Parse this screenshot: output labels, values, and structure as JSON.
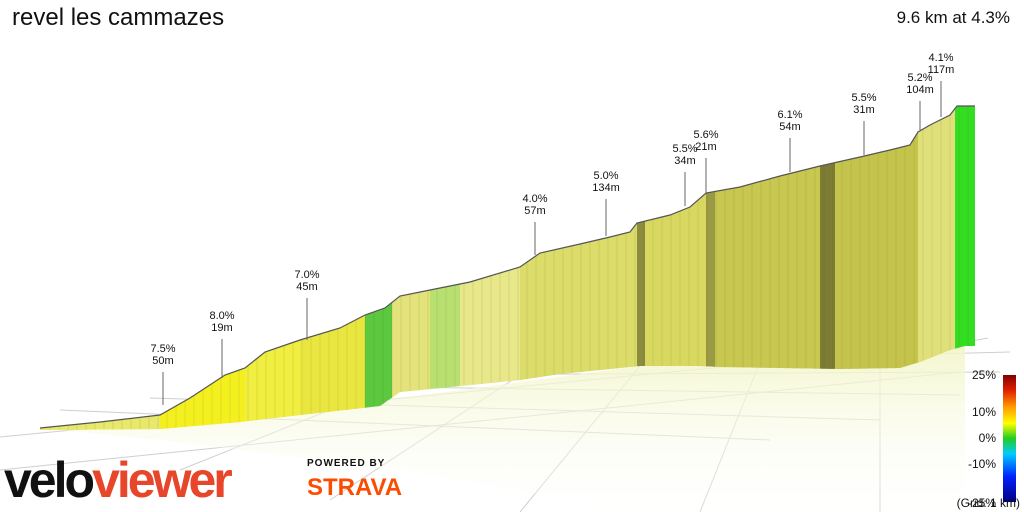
{
  "header": {
    "title": "revel les cammazes",
    "summary": "9.6 km at 4.3%"
  },
  "footer": {
    "grid_note": "(Grid: 1 km)",
    "brand_a": "velo",
    "brand_b": "viewer",
    "powered_by": "POWERED BY",
    "strava": "STRAVA"
  },
  "colors": {
    "brand_orange": "#e8462a",
    "strava_orange": "#fc4c02",
    "gradient_high": "#800000",
    "gradient_mid": "#ffff00",
    "gradient_zero": "#22cc22",
    "gradient_low": "#000080"
  },
  "chart_data": {
    "type": "area",
    "title": "revel les cammazes",
    "distance_km": 9.6,
    "average_grade_pct": 4.3,
    "colorbar": {
      "ticks": [
        "25%",
        "10%",
        "0%",
        "-10%",
        "-25%"
      ],
      "range_pct": [
        -25,
        25
      ]
    },
    "annotations": [
      {
        "grade": "7.5%",
        "length": "50m"
      },
      {
        "grade": "8.0%",
        "length": "19m"
      },
      {
        "grade": "7.0%",
        "length": "45m"
      },
      {
        "grade": "4.0%",
        "length": "57m"
      },
      {
        "grade": "5.0%",
        "length": "134m"
      },
      {
        "grade": "5.5%",
        "length": "34m"
      },
      {
        "grade": "5.6%",
        "length": "21m"
      },
      {
        "grade": "6.1%",
        "length": "54m"
      },
      {
        "grade": "5.5%",
        "length": "31m"
      },
      {
        "grade": "5.2%",
        "length": "104m"
      },
      {
        "grade": "4.1%",
        "length": "117m"
      }
    ]
  }
}
